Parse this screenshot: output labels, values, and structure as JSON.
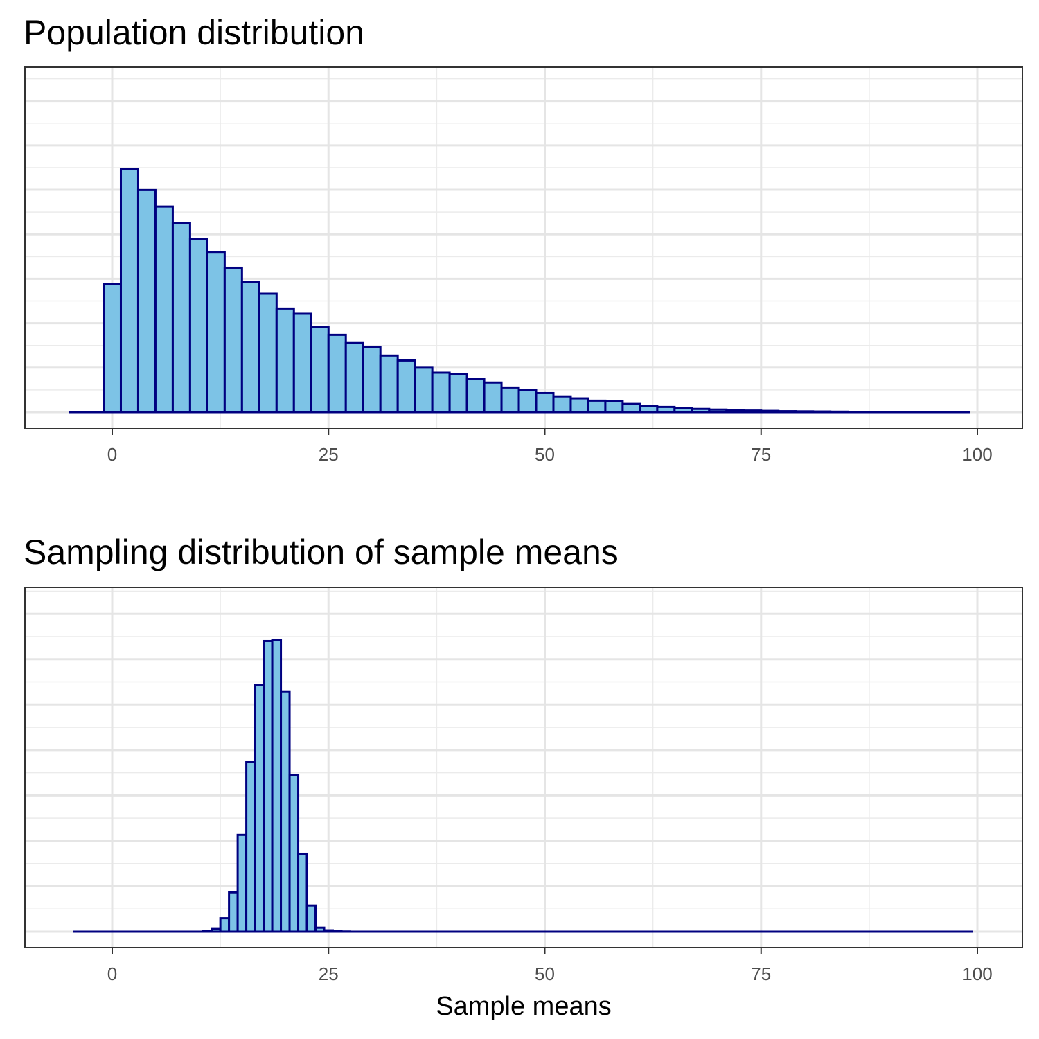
{
  "chart_data": [
    {
      "type": "bar",
      "title": "Population distribution",
      "xlabel": "",
      "ylabel": "",
      "xlim": [
        -10,
        105
      ],
      "ylim": [
        0,
        1
      ],
      "x_ticks": [
        0,
        25,
        50,
        75,
        100
      ],
      "x_tick_labels": [
        "0",
        "25",
        "50",
        "75",
        "100"
      ],
      "grid": true,
      "y_ticks_shown": false,
      "bin_width": 2,
      "bin_start": -5,
      "values": [
        0,
        0,
        0.39,
        0.74,
        0.675,
        0.625,
        0.575,
        0.526,
        0.487,
        0.439,
        0.395,
        0.36,
        0.315,
        0.299,
        0.26,
        0.235,
        0.21,
        0.198,
        0.172,
        0.157,
        0.135,
        0.12,
        0.115,
        0.1,
        0.09,
        0.075,
        0.068,
        0.058,
        0.048,
        0.042,
        0.035,
        0.033,
        0.025,
        0.02,
        0.016,
        0.012,
        0.01,
        0.008,
        0.006,
        0.005,
        0.004,
        0.003,
        0.0025,
        0.002,
        0.0015,
        0.001,
        0.001,
        0.0008,
        0.0006,
        0.0005,
        0.0004,
        0.0003
      ],
      "fill_color": "#7DC3E6",
      "stroke_color": "#000080"
    },
    {
      "type": "bar",
      "title": "Sampling distribution of sample means",
      "xlabel": "Sample means",
      "ylabel": "",
      "xlim": [
        -10,
        105
      ],
      "ylim": [
        0,
        1
      ],
      "x_ticks": [
        0,
        25,
        50,
        75,
        100
      ],
      "x_tick_labels": [
        "0",
        "25",
        "50",
        "75",
        "100"
      ],
      "grid": true,
      "y_ticks_shown": false,
      "bin_width": 1,
      "bin_start": -4.5,
      "values": [
        0,
        0,
        0,
        0,
        0,
        0,
        0,
        0,
        0,
        0,
        0,
        0,
        0,
        0,
        0,
        0.002,
        0.008,
        0.04,
        0.117,
        0.288,
        0.505,
        0.733,
        0.865,
        0.867,
        0.715,
        0.465,
        0.232,
        0.078,
        0.012,
        0.004,
        0.001,
        0.0005
      ],
      "fill_color": "#7DC3E6",
      "stroke_color": "#000080"
    }
  ]
}
